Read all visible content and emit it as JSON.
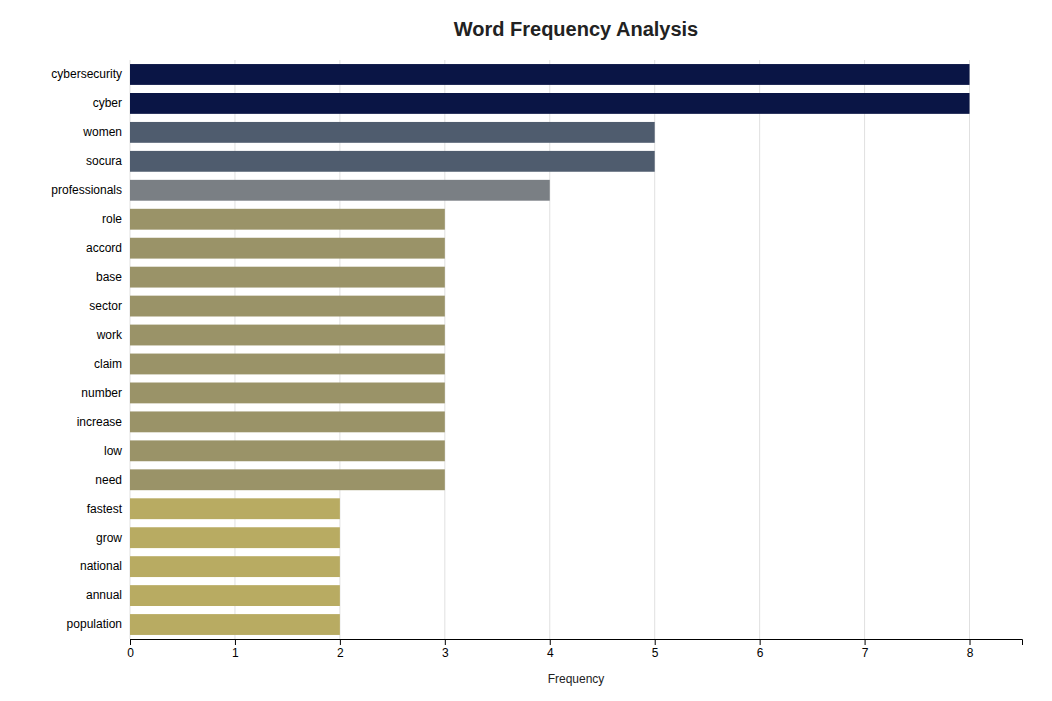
{
  "chart_data": {
    "type": "bar",
    "orientation": "horizontal",
    "title": "Word Frequency Analysis",
    "xlabel": "Frequency",
    "categories": [
      "cybersecurity",
      "cyber",
      "women",
      "socura",
      "professionals",
      "role",
      "accord",
      "base",
      "sector",
      "work",
      "claim",
      "number",
      "increase",
      "low",
      "need",
      "fastest",
      "grow",
      "national",
      "annual",
      "population"
    ],
    "values": [
      8,
      8,
      5,
      5,
      4,
      3,
      3,
      3,
      3,
      3,
      3,
      3,
      3,
      3,
      3,
      2,
      2,
      2,
      2,
      2
    ],
    "colors": [
      "#0a1545",
      "#0a1545",
      "#4f5c6e",
      "#4f5c6e",
      "#7a7f84",
      "#9a9368",
      "#9a9368",
      "#9a9368",
      "#9a9368",
      "#9a9368",
      "#9a9368",
      "#9a9368",
      "#9a9368",
      "#9a9368",
      "#9a9368",
      "#b8ab62",
      "#b8ab62",
      "#b8ab62",
      "#b8ab62",
      "#b8ab62"
    ],
    "xlim": [
      0,
      8.5
    ],
    "xticks": [
      0,
      1,
      2,
      3,
      4,
      5,
      6,
      7,
      8
    ],
    "grid": true
  }
}
